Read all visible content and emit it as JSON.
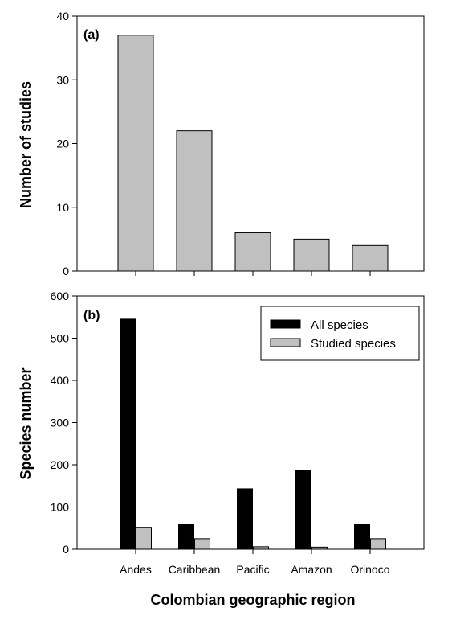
{
  "chart_data": [
    {
      "type": "bar",
      "panel_label": "(a)",
      "categories": [
        "Andes",
        "Caribbean",
        "Pacific",
        "Amazon",
        "Orinoco"
      ],
      "values": [
        37,
        22,
        6,
        5,
        4
      ],
      "xlabel": "",
      "ylabel": "Number of studies",
      "ylim": [
        0,
        40
      ],
      "yticks": [
        0,
        10,
        20,
        30,
        40
      ],
      "bar_color": "#c0c0c0",
      "grid": false
    },
    {
      "type": "bar",
      "panel_label": "(b)",
      "categories": [
        "Andes",
        "Caribbean",
        "Pacific",
        "Amazon",
        "Orinoco"
      ],
      "series": [
        {
          "name": "All species",
          "values": [
            545,
            60,
            143,
            187,
            60
          ],
          "color": "#000000"
        },
        {
          "name": "Studied species",
          "values": [
            52,
            25,
            6,
            5,
            25
          ],
          "color": "#c0c0c0"
        }
      ],
      "xlabel": "Colombian geographic region",
      "ylabel": "Species number",
      "ylim": [
        0,
        600
      ],
      "yticks": [
        0,
        100,
        200,
        300,
        400,
        500,
        600
      ],
      "legend_position": "top-right",
      "grid": false
    }
  ]
}
